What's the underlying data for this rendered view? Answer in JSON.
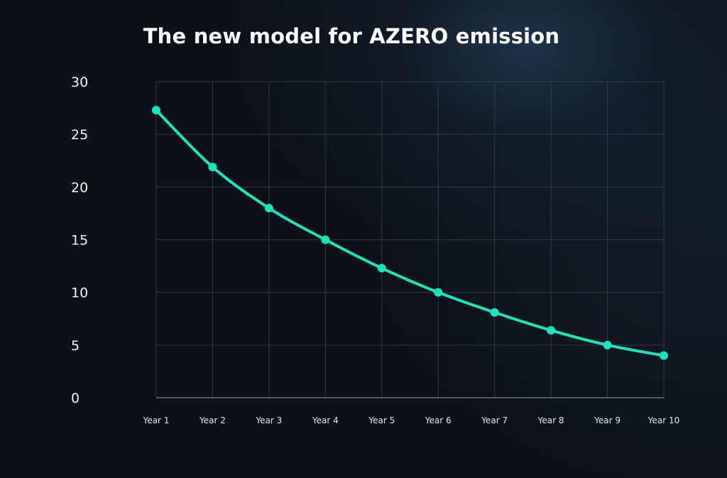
{
  "title": {
    "prefix": "The new model for",
    "emphasis": "AZERO emission"
  },
  "chart_data": {
    "type": "line",
    "title": "The new model for AZERO emission",
    "xlabel": "",
    "ylabel": "",
    "categories": [
      "Year 1",
      "Year 2",
      "Year 3",
      "Year 4",
      "Year 5",
      "Year 6",
      "Year 7",
      "Year 8",
      "Year 9",
      "Year 10"
    ],
    "series": [
      {
        "values": [
          27.3,
          21.9,
          18.0,
          15.0,
          12.3,
          10.0,
          8.1,
          6.4,
          5.0,
          4.0
        ],
        "color": "#19e6be"
      }
    ],
    "yticks": [
      0,
      5,
      10,
      15,
      20,
      25,
      30
    ],
    "ylim": [
      0,
      30
    ],
    "grid": true,
    "smooth": true,
    "markers": true
  },
  "colors": {
    "background": "#0c1117",
    "line": "#19e6be",
    "grid": "#3a4450",
    "text": "#ffffff"
  }
}
